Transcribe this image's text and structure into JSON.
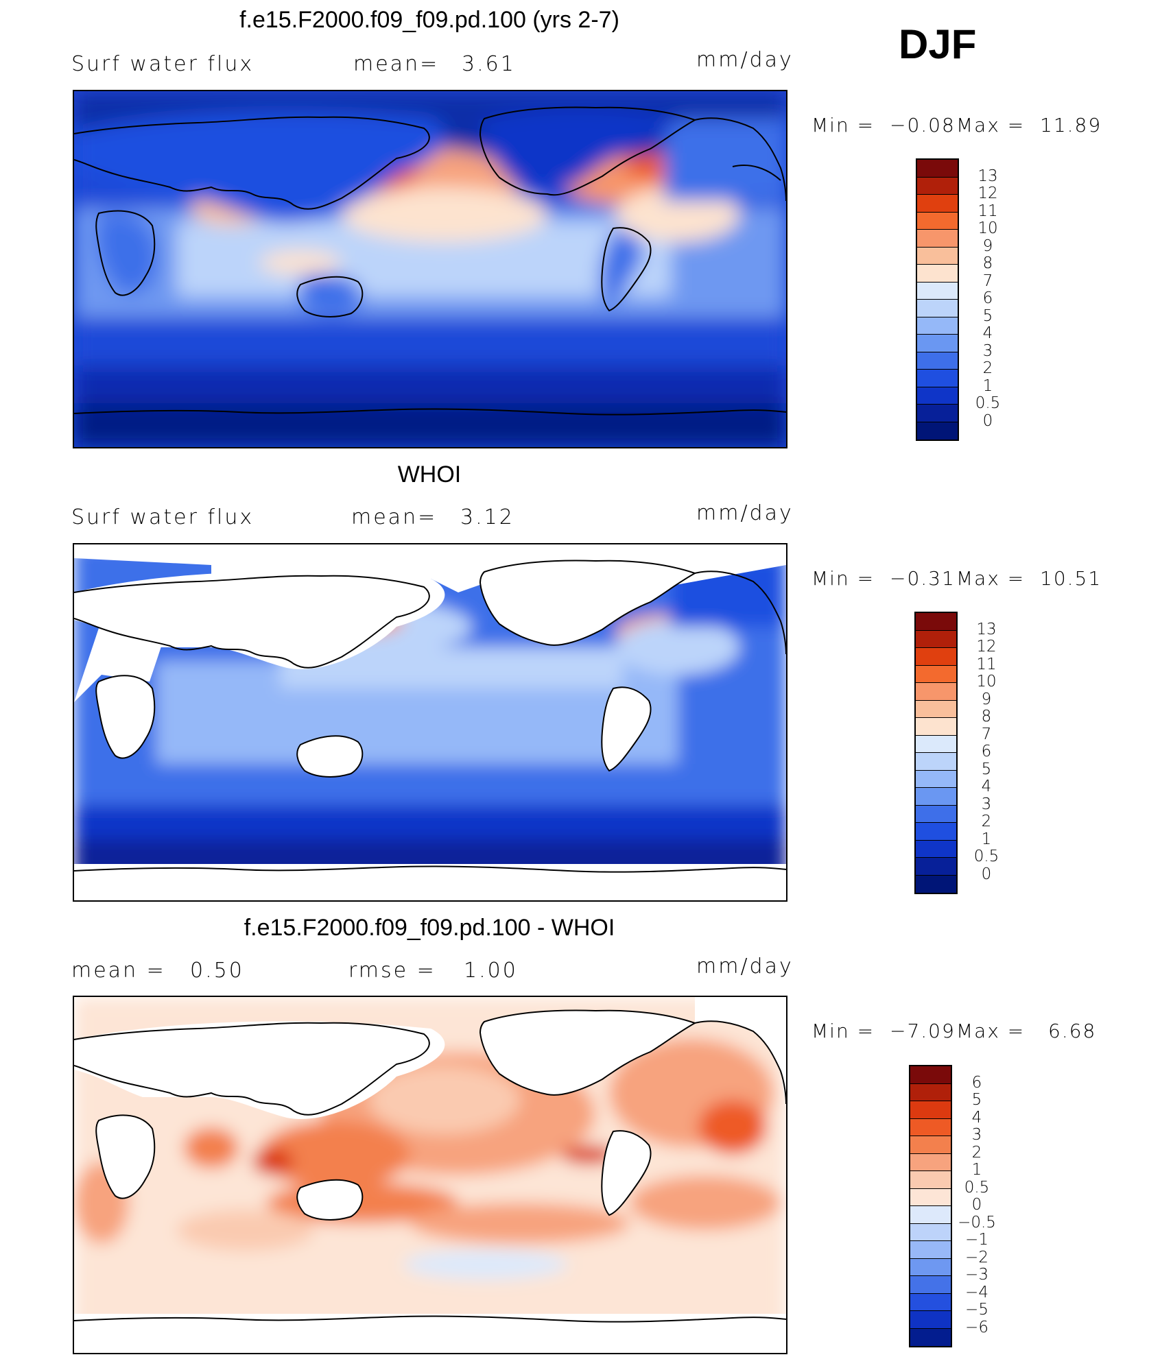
{
  "season": "DJF",
  "panels": [
    {
      "title": "f.e15.F2000.f09_f09.pd.100 (yrs 2-7)",
      "left_label": "Surf  water  flux",
      "center_label": "mean=",
      "center_value": "3.61",
      "units": "mm/day",
      "min_label": "Min  =",
      "min_value": "−0.08",
      "max_label": "Max  =",
      "max_value": "11.89",
      "colorbar_labels": [
        "13",
        "12",
        "11",
        "10",
        "9",
        "8",
        "7",
        "6",
        "5",
        "4",
        "3",
        "2",
        "1",
        "0.5",
        "0"
      ]
    },
    {
      "title": "WHOI",
      "left_label": "Surf  water  flux",
      "center_label": "mean=",
      "center_value": "3.12",
      "units": "mm/day",
      "min_label": "Min  =",
      "min_value": "−0.31",
      "max_label": "Max  =",
      "max_value": "10.51",
      "colorbar_labels": [
        "13",
        "12",
        "11",
        "10",
        "9",
        "8",
        "7",
        "6",
        "5",
        "4",
        "3",
        "2",
        "1",
        "0.5",
        "0"
      ]
    },
    {
      "title": "f.e15.F2000.f09_f09.pd.100 - WHOI",
      "left_label": "mean  =",
      "left_value": "0.50",
      "center_label": "rmse  =",
      "center_value": "1.00",
      "units": "mm/day",
      "min_label": "Min  =",
      "min_value": "−7.09",
      "max_label": "Max  =",
      "max_value": "6.68",
      "colorbar_labels": [
        "6",
        "5",
        "4",
        "3",
        "2",
        "1",
        "0.5",
        "0",
        "−0.5",
        "−1",
        "−2",
        "−3",
        "−4",
        "−5",
        "−6"
      ]
    }
  ],
  "colors": {
    "flux_scale": [
      "#7a0a0a",
      "#b0200a",
      "#e0400f",
      "#f36a2e",
      "#f7966b",
      "#f9bf9b",
      "#fde3cf",
      "#dbe9fb",
      "#bcd4fa",
      "#95b8f8",
      "#6a97f2",
      "#3e6fe9",
      "#1f4fe0",
      "#0f35c8",
      "#072099",
      "#001577"
    ],
    "anom_scale": [
      "#7a0a0a",
      "#b0200a",
      "#dc3a10",
      "#ee5a25",
      "#f3804d",
      "#f7a37e",
      "#facab0",
      "#fde5d6",
      "#dde9fb",
      "#bdd3fa",
      "#98b8f7",
      "#6e98f1",
      "#4472e8",
      "#2450df",
      "#0f33c4",
      "#031d8f"
    ],
    "land_outline": "#000000"
  }
}
